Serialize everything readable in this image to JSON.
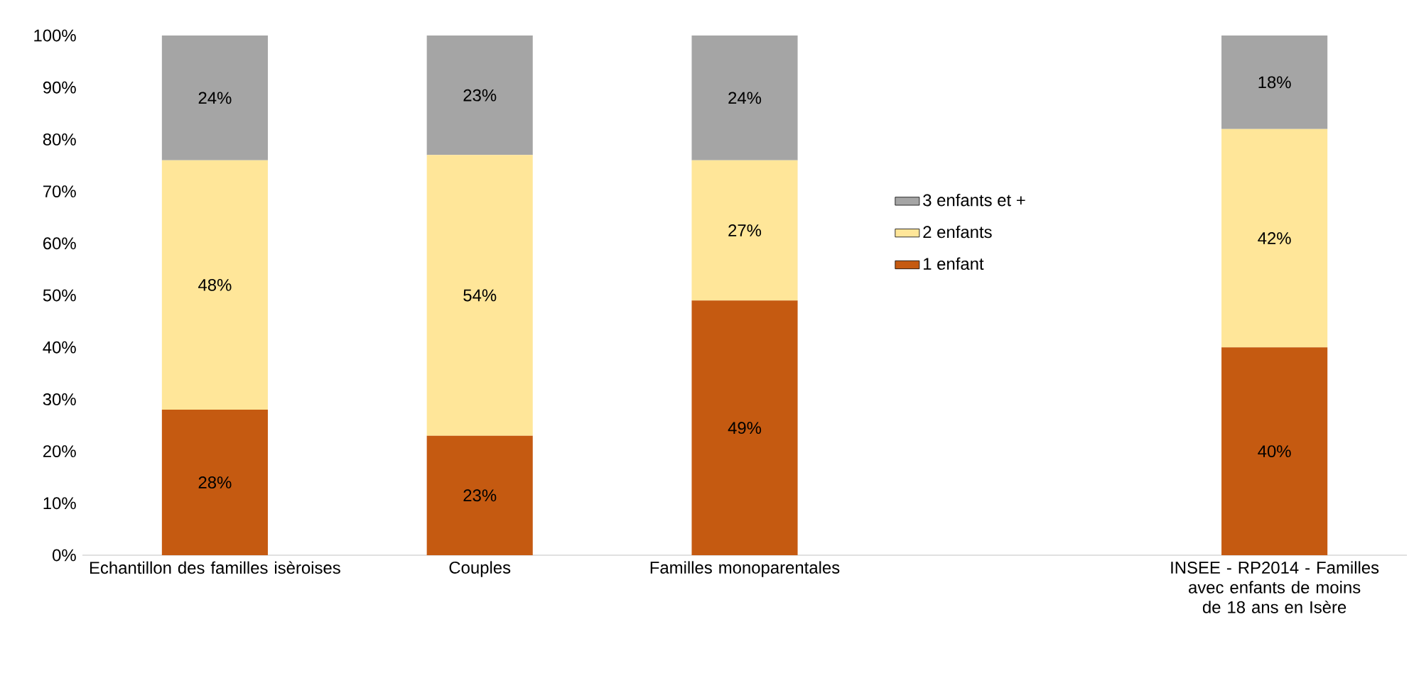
{
  "chart_data": {
    "type": "bar",
    "stacked": true,
    "categories": [
      "Echantillon des familles isèroises",
      "Couples",
      "Familles monoparentales",
      null,
      "INSEE - RP2014 - Familles avec enfants de moins de 18 ans en Isère"
    ],
    "series": [
      {
        "name": "1 enfant",
        "color": "#c55a11",
        "values": [
          28,
          23,
          49,
          null,
          40
        ],
        "value_labels": [
          "28%",
          "23%",
          "49%",
          null,
          "40%"
        ]
      },
      {
        "name": "2 enfants",
        "color": "#ffe699",
        "values": [
          48,
          54,
          27,
          null,
          42
        ],
        "value_labels": [
          "48%",
          "54%",
          "27%",
          null,
          "42%"
        ]
      },
      {
        "name": "3 enfants et +",
        "color": "#a5a5a5",
        "values": [
          24,
          23,
          24,
          null,
          18
        ],
        "value_labels": [
          "24%",
          "23%",
          "24%",
          null,
          "18%"
        ]
      }
    ],
    "ylim": [
      0,
      100
    ],
    "yticks": [
      {
        "value": 0,
        "label": "0%"
      },
      {
        "value": 10,
        "label": "10%"
      },
      {
        "value": 20,
        "label": "20%"
      },
      {
        "value": 30,
        "label": "30%"
      },
      {
        "value": 40,
        "label": "40%"
      },
      {
        "value": 50,
        "label": "50%"
      },
      {
        "value": 60,
        "label": "60%"
      },
      {
        "value": 70,
        "label": "70%"
      },
      {
        "value": 80,
        "label": "80%"
      },
      {
        "value": 90,
        "label": "90%"
      },
      {
        "value": 100,
        "label": "100%"
      }
    ],
    "legend": "right",
    "grid": false
  }
}
